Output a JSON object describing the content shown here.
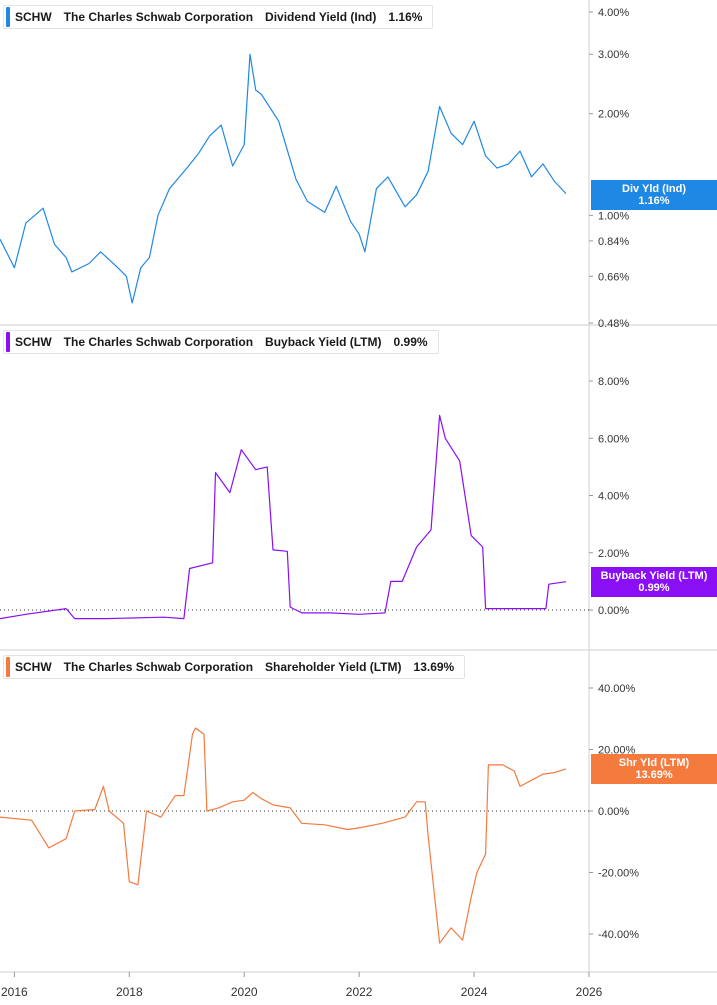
{
  "panels": [
    {
      "ticker": "SCHW",
      "company": "The Charles Schwab Corporation",
      "metric": "Dividend Yield (Ind)",
      "value_text": "1.16%",
      "tag_label": "Div Yld (Ind)",
      "tag_value": "1.16%",
      "color": "#1f88e5"
    },
    {
      "ticker": "SCHW",
      "company": "The Charles Schwab Corporation",
      "metric": "Buyback Yield (LTM)",
      "value_text": "0.99%",
      "tag_label": "Buyback Yield (LTM)",
      "tag_value": "0.99%",
      "color": "#8a0ff5"
    },
    {
      "ticker": "SCHW",
      "company": "The Charles Schwab Corporation",
      "metric": "Shareholder Yield (LTM)",
      "value_text": "13.69%",
      "tag_label": "Shr Yld (LTM)",
      "tag_value": "13.69%",
      "color": "#f47a3e"
    }
  ],
  "chart_data": [
    {
      "type": "line",
      "title": "Dividend Yield (Ind)",
      "scale": "log",
      "ylim": [
        0.48,
        4.0
      ],
      "y_ticks": [
        "4.00%",
        "3.00%",
        "2.00%",
        "1.00%",
        "0.84%",
        "0.66%",
        "0.48%"
      ],
      "y_tick_values": [
        4.0,
        3.0,
        2.0,
        1.0,
        0.84,
        0.66,
        0.48
      ],
      "series": [
        {
          "name": "Div Yld (Ind)",
          "x": [
            2015.75,
            2016.0,
            2016.2,
            2016.5,
            2016.7,
            2016.9,
            2017.0,
            2017.3,
            2017.5,
            2017.8,
            2017.95,
            2018.05,
            2018.2,
            2018.35,
            2018.5,
            2018.7,
            2019.0,
            2019.2,
            2019.4,
            2019.6,
            2019.8,
            2020.0,
            2020.1,
            2020.2,
            2020.3,
            2020.6,
            2020.9,
            2021.1,
            2021.4,
            2021.6,
            2021.85,
            2022.0,
            2022.1,
            2022.3,
            2022.5,
            2022.8,
            2023.0,
            2023.2,
            2023.4,
            2023.6,
            2023.8,
            2024.0,
            2024.2,
            2024.4,
            2024.6,
            2024.8,
            2025.0,
            2025.2,
            2025.4,
            2025.6
          ],
          "values": [
            0.85,
            0.7,
            0.95,
            1.05,
            0.82,
            0.75,
            0.68,
            0.72,
            0.78,
            0.7,
            0.66,
            0.55,
            0.7,
            0.75,
            1.0,
            1.2,
            1.38,
            1.52,
            1.72,
            1.85,
            1.4,
            1.62,
            3.0,
            2.35,
            2.28,
            1.9,
            1.28,
            1.1,
            1.02,
            1.22,
            0.96,
            0.88,
            0.78,
            1.2,
            1.3,
            1.06,
            1.15,
            1.35,
            2.1,
            1.75,
            1.62,
            1.9,
            1.5,
            1.38,
            1.42,
            1.55,
            1.3,
            1.42,
            1.26,
            1.16
          ]
        }
      ],
      "x_ticks": [
        "2016",
        "2018",
        "2020",
        "2022",
        "2024",
        "2026"
      ],
      "xlim": [
        2015.75,
        2026.0
      ],
      "grid": false
    },
    {
      "type": "line",
      "title": "Buyback Yield (LTM)",
      "ylim": [
        -0.5,
        8.3
      ],
      "y_ticks": [
        "8.00%",
        "6.00%",
        "4.00%",
        "2.00%",
        "0.00%"
      ],
      "y_tick_values": [
        8,
        6,
        4,
        2,
        0
      ],
      "series": [
        {
          "name": "Buyback Yield (LTM)",
          "x": [
            2015.75,
            2016.2,
            2016.9,
            2017.05,
            2017.6,
            2018.6,
            2018.95,
            2019.05,
            2019.45,
            2019.5,
            2019.75,
            2019.95,
            2020.2,
            2020.4,
            2020.5,
            2020.75,
            2020.8,
            2021.0,
            2021.5,
            2022.0,
            2022.45,
            2022.55,
            2022.75,
            2023.0,
            2023.25,
            2023.4,
            2023.5,
            2023.75,
            2023.95,
            2024.15,
            2024.2,
            2024.5,
            2025.0,
            2025.25,
            2025.3,
            2025.6
          ],
          "values": [
            -0.3,
            -0.15,
            0.05,
            -0.3,
            -0.3,
            -0.25,
            -0.3,
            1.45,
            1.65,
            4.8,
            4.1,
            5.6,
            4.9,
            5.0,
            2.1,
            2.05,
            0.1,
            -0.1,
            -0.1,
            -0.15,
            -0.1,
            1.0,
            1.0,
            2.2,
            2.8,
            6.8,
            6.0,
            5.2,
            2.6,
            2.2,
            0.05,
            0.05,
            0.05,
            0.05,
            0.9,
            0.99
          ]
        }
      ],
      "x_ticks": [
        "2016",
        "2018",
        "2020",
        "2022",
        "2024",
        "2026"
      ],
      "xlim": [
        2015.75,
        2026.0
      ],
      "zero_line": true,
      "grid": false
    },
    {
      "type": "line",
      "title": "Shareholder Yield (LTM)",
      "ylim": [
        -45,
        45
      ],
      "y_ticks": [
        "40.00%",
        "20.00%",
        "0.00%",
        "-20.00%",
        "-40.00%"
      ],
      "y_tick_values": [
        40,
        20,
        0,
        -20,
        -40
      ],
      "series": [
        {
          "name": "Shr Yld (LTM)",
          "x": [
            2015.75,
            2016.3,
            2016.6,
            2016.9,
            2017.05,
            2017.4,
            2017.55,
            2017.65,
            2017.9,
            2018.0,
            2018.15,
            2018.3,
            2018.55,
            2018.8,
            2018.95,
            2019.1,
            2019.15,
            2019.3,
            2019.35,
            2019.55,
            2019.8,
            2020.0,
            2020.15,
            2020.3,
            2020.5,
            2020.8,
            2021.0,
            2021.4,
            2021.8,
            2022.0,
            2022.4,
            2022.8,
            2023.0,
            2023.15,
            2023.2,
            2023.4,
            2023.6,
            2023.8,
            2023.95,
            2024.05,
            2024.2,
            2024.25,
            2024.5,
            2024.7,
            2024.8,
            2025.0,
            2025.2,
            2025.4,
            2025.6
          ],
          "values": [
            -2,
            -3,
            -12,
            -9,
            0,
            0.5,
            8,
            0,
            -4,
            -23,
            -24,
            0,
            -2,
            5,
            5,
            25,
            27,
            25,
            0,
            1,
            3,
            3.5,
            6,
            4,
            2,
            1,
            -4,
            -4.5,
            -6,
            -5.5,
            -4,
            -2,
            3,
            3,
            -8,
            -43,
            -38,
            -42,
            -28,
            -20,
            -14,
            15,
            15,
            13,
            8,
            10,
            12,
            12.5,
            13.69
          ]
        }
      ],
      "x_ticks": [
        "2016",
        "2018",
        "2020",
        "2022",
        "2024",
        "2026"
      ],
      "xlim": [
        2015.75,
        2026.0
      ],
      "zero_line": true,
      "grid": false
    }
  ]
}
